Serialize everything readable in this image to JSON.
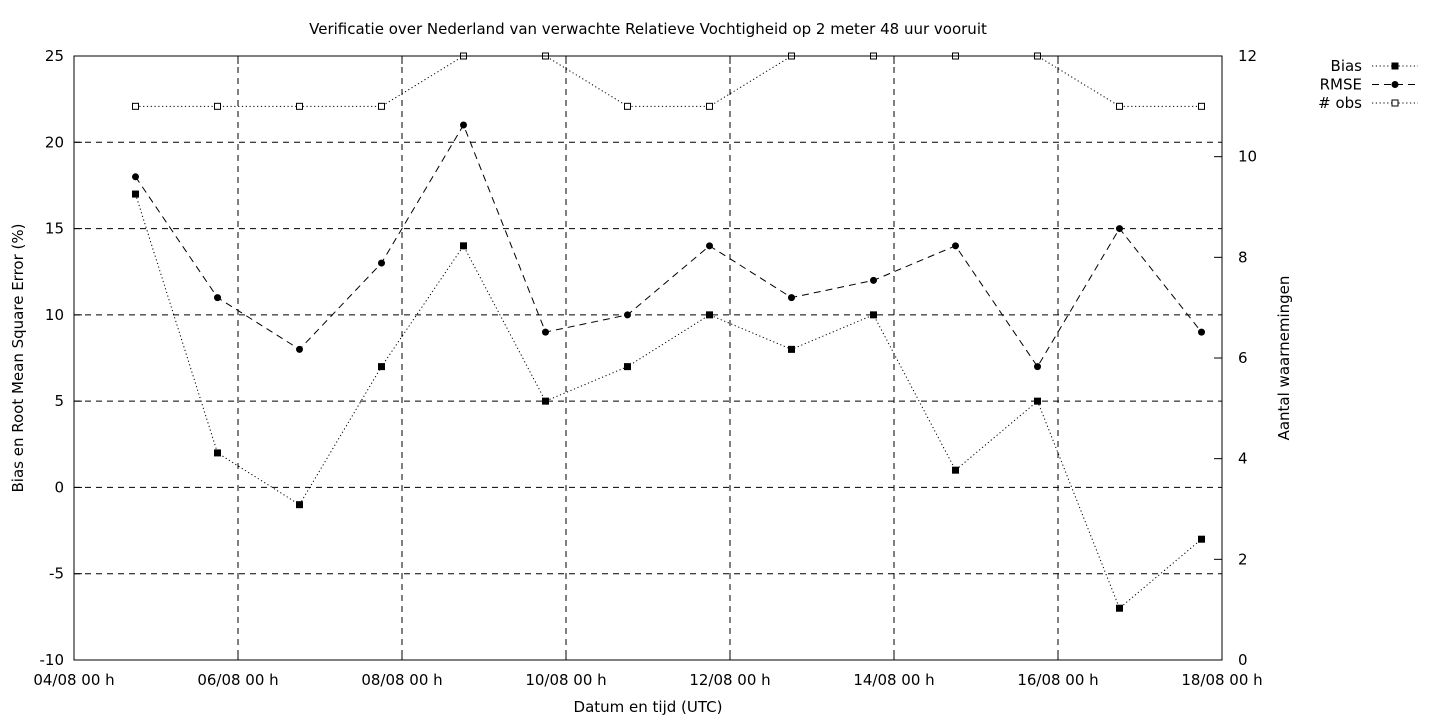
{
  "chart_data": {
    "type": "line",
    "title": "Verificatie over Nederland van verwachte Relatieve Vochtigheid op 2 meter 48 uur vooruit",
    "xlabel": "Datum en tijd (UTC)",
    "ylabel": "Bias en Root Mean Square Error (%)",
    "y2label": "Aantal waarnemingen",
    "xticks": [
      "04/08 00 h",
      "06/08 00 h",
      "08/08 00 h",
      "10/08 00 h",
      "12/08 00 h",
      "14/08 00 h",
      "16/08 00 h",
      "18/08 00 h"
    ],
    "xlim_days": [
      4,
      18
    ],
    "ylim": [
      -10,
      25
    ],
    "yticks": [
      -10,
      -5,
      0,
      5,
      10,
      15,
      20,
      25
    ],
    "y2lim": [
      0,
      12
    ],
    "y2ticks": [
      0,
      2,
      4,
      6,
      8,
      10,
      12
    ],
    "grid": true,
    "legend_position": "top-right outside",
    "x_days": [
      4.75,
      5.75,
      6.75,
      7.75,
      8.75,
      9.75,
      10.75,
      11.75,
      12.75,
      13.75,
      14.75,
      15.75,
      16.75,
      17.75
    ],
    "series": [
      {
        "name": "Bias",
        "axis": "left",
        "marker": "filled-square",
        "line": "dotted",
        "values": [
          17,
          2,
          -1,
          7,
          14,
          5,
          7,
          10,
          8,
          10,
          1,
          5,
          -7,
          -3
        ]
      },
      {
        "name": "RMSE",
        "axis": "left",
        "marker": "filled-circle",
        "line": "dashed",
        "values": [
          18,
          11,
          8,
          13,
          21,
          9,
          10,
          14,
          11,
          12,
          14,
          7,
          15,
          9
        ]
      },
      {
        "name": "# obs",
        "axis": "right",
        "marker": "open-square",
        "line": "dotted",
        "values": [
          11,
          11,
          11,
          11,
          12,
          12,
          11,
          11,
          12,
          12,
          12,
          12,
          11,
          11
        ]
      }
    ]
  }
}
